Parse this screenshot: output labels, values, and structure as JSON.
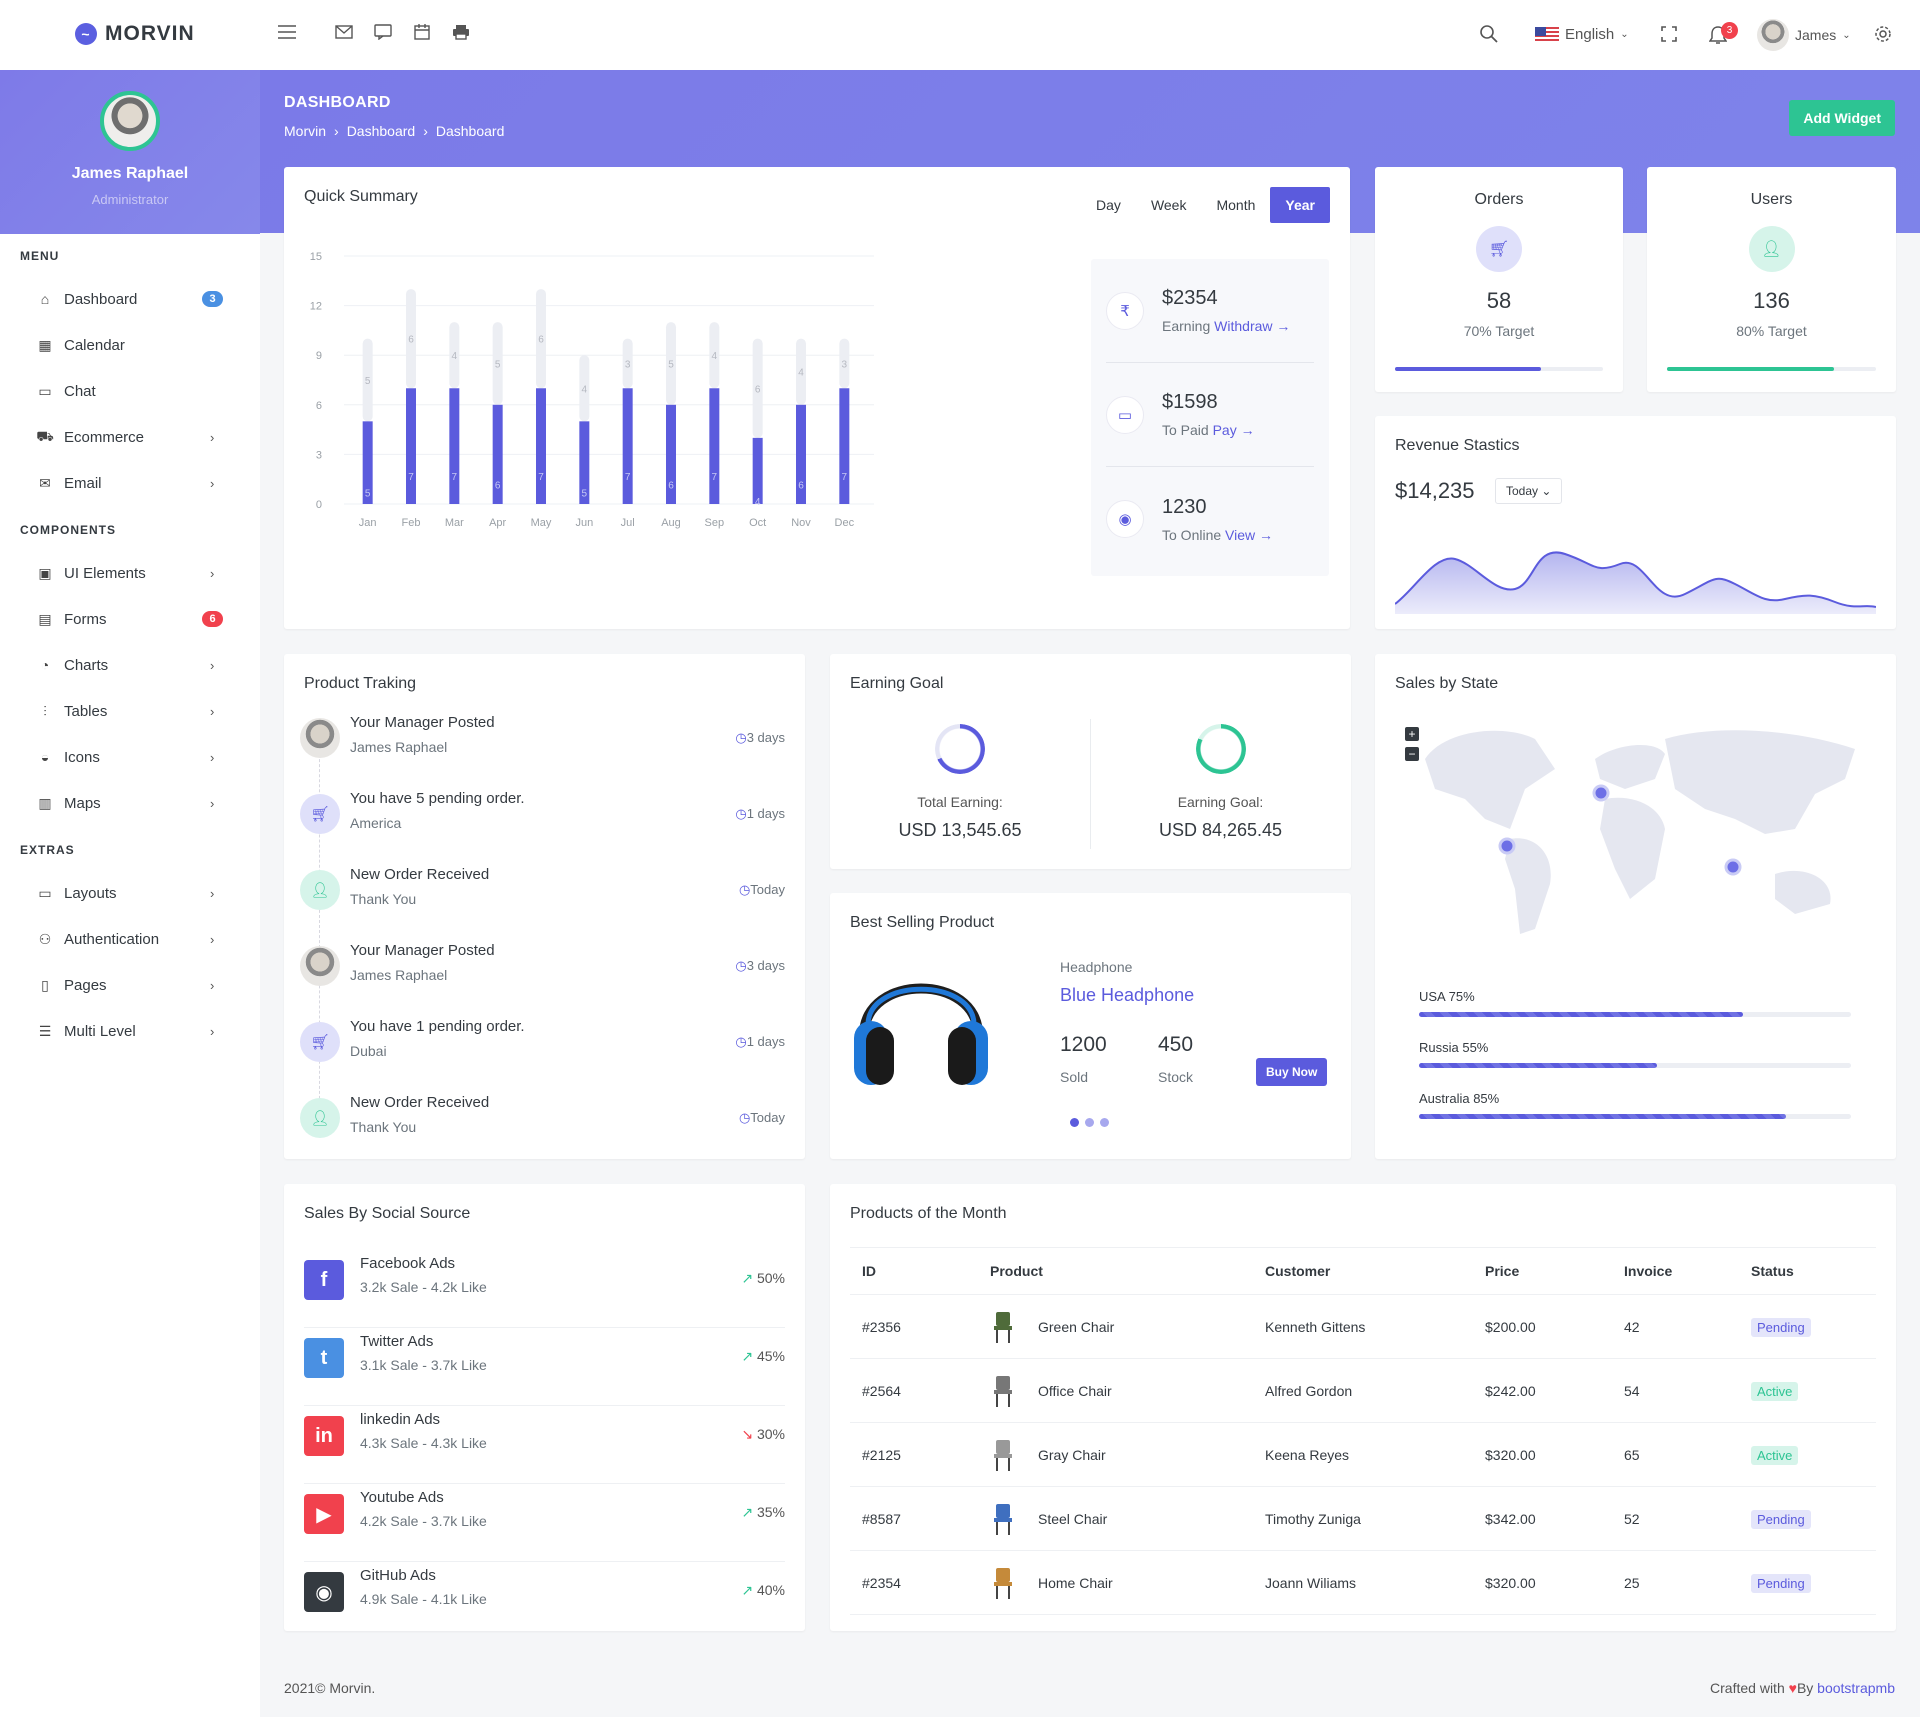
{
  "brand": {
    "name": "MORVIN"
  },
  "topbar": {
    "language": "English",
    "notif_count": "3",
    "user": "James"
  },
  "sidebar": {
    "user_name": "James Raphael",
    "user_role": "Administrator",
    "sections": [
      {
        "title": "MENU",
        "items": [
          {
            "label": "Dashboard",
            "icon": "home-icon",
            "badge": "3",
            "badge_color": "#4a90e2",
            "chev": false
          },
          {
            "label": "Calendar",
            "icon": "calendar-icon",
            "chev": false
          },
          {
            "label": "Chat",
            "icon": "chat-icon",
            "chev": false
          },
          {
            "label": "Ecommerce",
            "icon": "cart-icon",
            "chev": true
          },
          {
            "label": "Email",
            "icon": "mail-icon",
            "chev": true
          }
        ]
      },
      {
        "title": "COMPONENTS",
        "items": [
          {
            "label": "UI Elements",
            "icon": "briefcase-icon",
            "chev": true
          },
          {
            "label": "Forms",
            "icon": "form-icon",
            "badge": "6",
            "badge_color": "#f1414d",
            "chev": false
          },
          {
            "label": "Charts",
            "icon": "pie-chart-icon",
            "chev": true
          },
          {
            "label": "Tables",
            "icon": "sliders-icon",
            "chev": true
          },
          {
            "label": "Icons",
            "icon": "basket-icon",
            "chev": true
          },
          {
            "label": "Maps",
            "icon": "map-icon",
            "chev": true
          }
        ]
      },
      {
        "title": "EXTRAS",
        "items": [
          {
            "label": "Layouts",
            "icon": "monitor-icon",
            "chev": true
          },
          {
            "label": "Authentication",
            "icon": "users-icon",
            "chev": true
          },
          {
            "label": "Pages",
            "icon": "pages-icon",
            "chev": true
          },
          {
            "label": "Multi Level",
            "icon": "list-icon",
            "chev": true
          }
        ]
      }
    ]
  },
  "header": {
    "title": "DASHBOARD",
    "breadcrumbs": [
      "Morvin",
      "Dashboard",
      "Dashboard"
    ],
    "add_widget": "Add Widget"
  },
  "quick_summary": {
    "title": "Quick Summary",
    "periods": [
      "Day",
      "Week",
      "Month",
      "Year"
    ],
    "active_period": "Year",
    "stats": [
      {
        "value": "$2354",
        "label": "Earning",
        "link": "Withdraw",
        "icon": "rupee-icon"
      },
      {
        "value": "$1598",
        "label": "To Paid",
        "link": "Pay",
        "icon": "card-icon"
      },
      {
        "value": "1230",
        "label": "To Online",
        "link": "View",
        "icon": "eye-icon"
      }
    ]
  },
  "chart_data": [
    {
      "type": "bar",
      "categories": [
        "Jan",
        "Feb",
        "Mar",
        "Apr",
        "May",
        "Jun",
        "Jul",
        "Aug",
        "Sep",
        "Oct",
        "Nov",
        "Dec"
      ],
      "series": [
        {
          "values": [
            5,
            7,
            7,
            6,
            7,
            5,
            7,
            6,
            7,
            4,
            6,
            7
          ]
        },
        {
          "values": [
            5,
            6,
            4,
            5,
            6,
            4,
            3,
            5,
            4,
            6,
            4,
            3
          ]
        }
      ],
      "stacked": true,
      "ylim": [
        0,
        15
      ],
      "yticks": [
        0,
        3,
        6,
        9,
        12,
        15
      ],
      "colors": [
        "#5b5bdd",
        "#eceef3"
      ]
    },
    {
      "type": "area",
      "title": "Revenue Stastics",
      "total": "$14,235",
      "filter": "Today"
    }
  ],
  "orders": {
    "title": "Orders",
    "value": "58",
    "target": "70% Target",
    "progress": 70,
    "color": "#5b5bdd"
  },
  "users": {
    "title": "Users",
    "value": "136",
    "target": "80% Target",
    "progress": 80,
    "color": "#2dc493"
  },
  "revenue": {
    "title": "Revenue Stastics",
    "total": "$14,235",
    "filter": "Today"
  },
  "tracking": {
    "title": "Product Traking",
    "items": [
      {
        "title": "Your Manager Posted",
        "sub": "James Raphael",
        "time": "3 days",
        "kind": "avatar"
      },
      {
        "title": "You have 5 pending order.",
        "sub": "America",
        "time": "1 days",
        "kind": "cart"
      },
      {
        "title": "New Order Received",
        "sub": "Thank You",
        "time": "Today",
        "kind": "user"
      },
      {
        "title": "Your Manager Posted",
        "sub": "James Raphael",
        "time": "3 days",
        "kind": "avatar"
      },
      {
        "title": "You have 1 pending order.",
        "sub": "Dubai",
        "time": "1 days",
        "kind": "cart"
      },
      {
        "title": "New Order Received",
        "sub": "Thank You",
        "time": "Today",
        "kind": "user"
      }
    ]
  },
  "earning_goal": {
    "title": "Earning Goal",
    "total_label": "Total Earning:",
    "total_value": "USD 13,545.65",
    "goal_label": "Earning Goal:",
    "goal_value": "USD 84,265.45"
  },
  "best_selling": {
    "title": "Best Selling Product",
    "category": "Headphone",
    "name": "Blue Headphone",
    "sold": "1200",
    "sold_label": "Sold",
    "stock": "450",
    "stock_label": "Stock",
    "button": "Buy Now"
  },
  "sales_state": {
    "title": "Sales by State",
    "rows": [
      {
        "label": "USA 75%",
        "pct": 75
      },
      {
        "label": "Russia 55%",
        "pct": 55
      },
      {
        "label": "Australia 85%",
        "pct": 85
      }
    ]
  },
  "social": {
    "title": "Sales By Social Source",
    "items": [
      {
        "name": "Facebook Ads",
        "sub": "3.2k Sale - 4.2k Like",
        "pct": "50%",
        "up": true,
        "color": "#5b5bdd",
        "glyph": "f"
      },
      {
        "name": "Twitter Ads",
        "sub": "3.1k Sale - 3.7k Like",
        "pct": "45%",
        "up": true,
        "color": "#4a90e2",
        "glyph": "t"
      },
      {
        "name": "linkedin Ads",
        "sub": "4.3k Sale - 4.3k Like",
        "pct": "30%",
        "up": false,
        "color": "#f1414d",
        "glyph": "in"
      },
      {
        "name": "Youtube Ads",
        "sub": "4.2k Sale - 3.7k Like",
        "pct": "35%",
        "up": true,
        "color": "#f1414d",
        "glyph": "▶"
      },
      {
        "name": "GitHub Ads",
        "sub": "4.9k Sale - 4.1k Like",
        "pct": "40%",
        "up": true,
        "color": "#343a40",
        "glyph": "◉"
      }
    ]
  },
  "products": {
    "title": "Products of the Month",
    "columns": [
      "ID",
      "Product",
      "Customer",
      "Price",
      "Invoice",
      "Status"
    ],
    "rows": [
      {
        "id": "#2356",
        "product": "Green Chair",
        "customer": "Kenneth Gittens",
        "price": "$200.00",
        "invoice": "42",
        "status": "Pending",
        "chair": "#4f6b3a"
      },
      {
        "id": "#2564",
        "product": "Office Chair",
        "customer": "Alfred Gordon",
        "price": "$242.00",
        "invoice": "54",
        "status": "Active",
        "chair": "#777"
      },
      {
        "id": "#2125",
        "product": "Gray Chair",
        "customer": "Keena Reyes",
        "price": "$320.00",
        "invoice": "65",
        "status": "Active",
        "chair": "#999"
      },
      {
        "id": "#8587",
        "product": "Steel Chair",
        "customer": "Timothy Zuniga",
        "price": "$342.00",
        "invoice": "52",
        "status": "Pending",
        "chair": "#3f6fbf"
      },
      {
        "id": "#2354",
        "product": "Home Chair",
        "customer": "Joann Wiliams",
        "price": "$320.00",
        "invoice": "25",
        "status": "Pending",
        "chair": "#c58a3a"
      }
    ]
  },
  "footer": {
    "left": "2021© Morvin.",
    "right_prefix": "Crafted with",
    "right_by": "By",
    "right_link": "bootstrapmb"
  }
}
